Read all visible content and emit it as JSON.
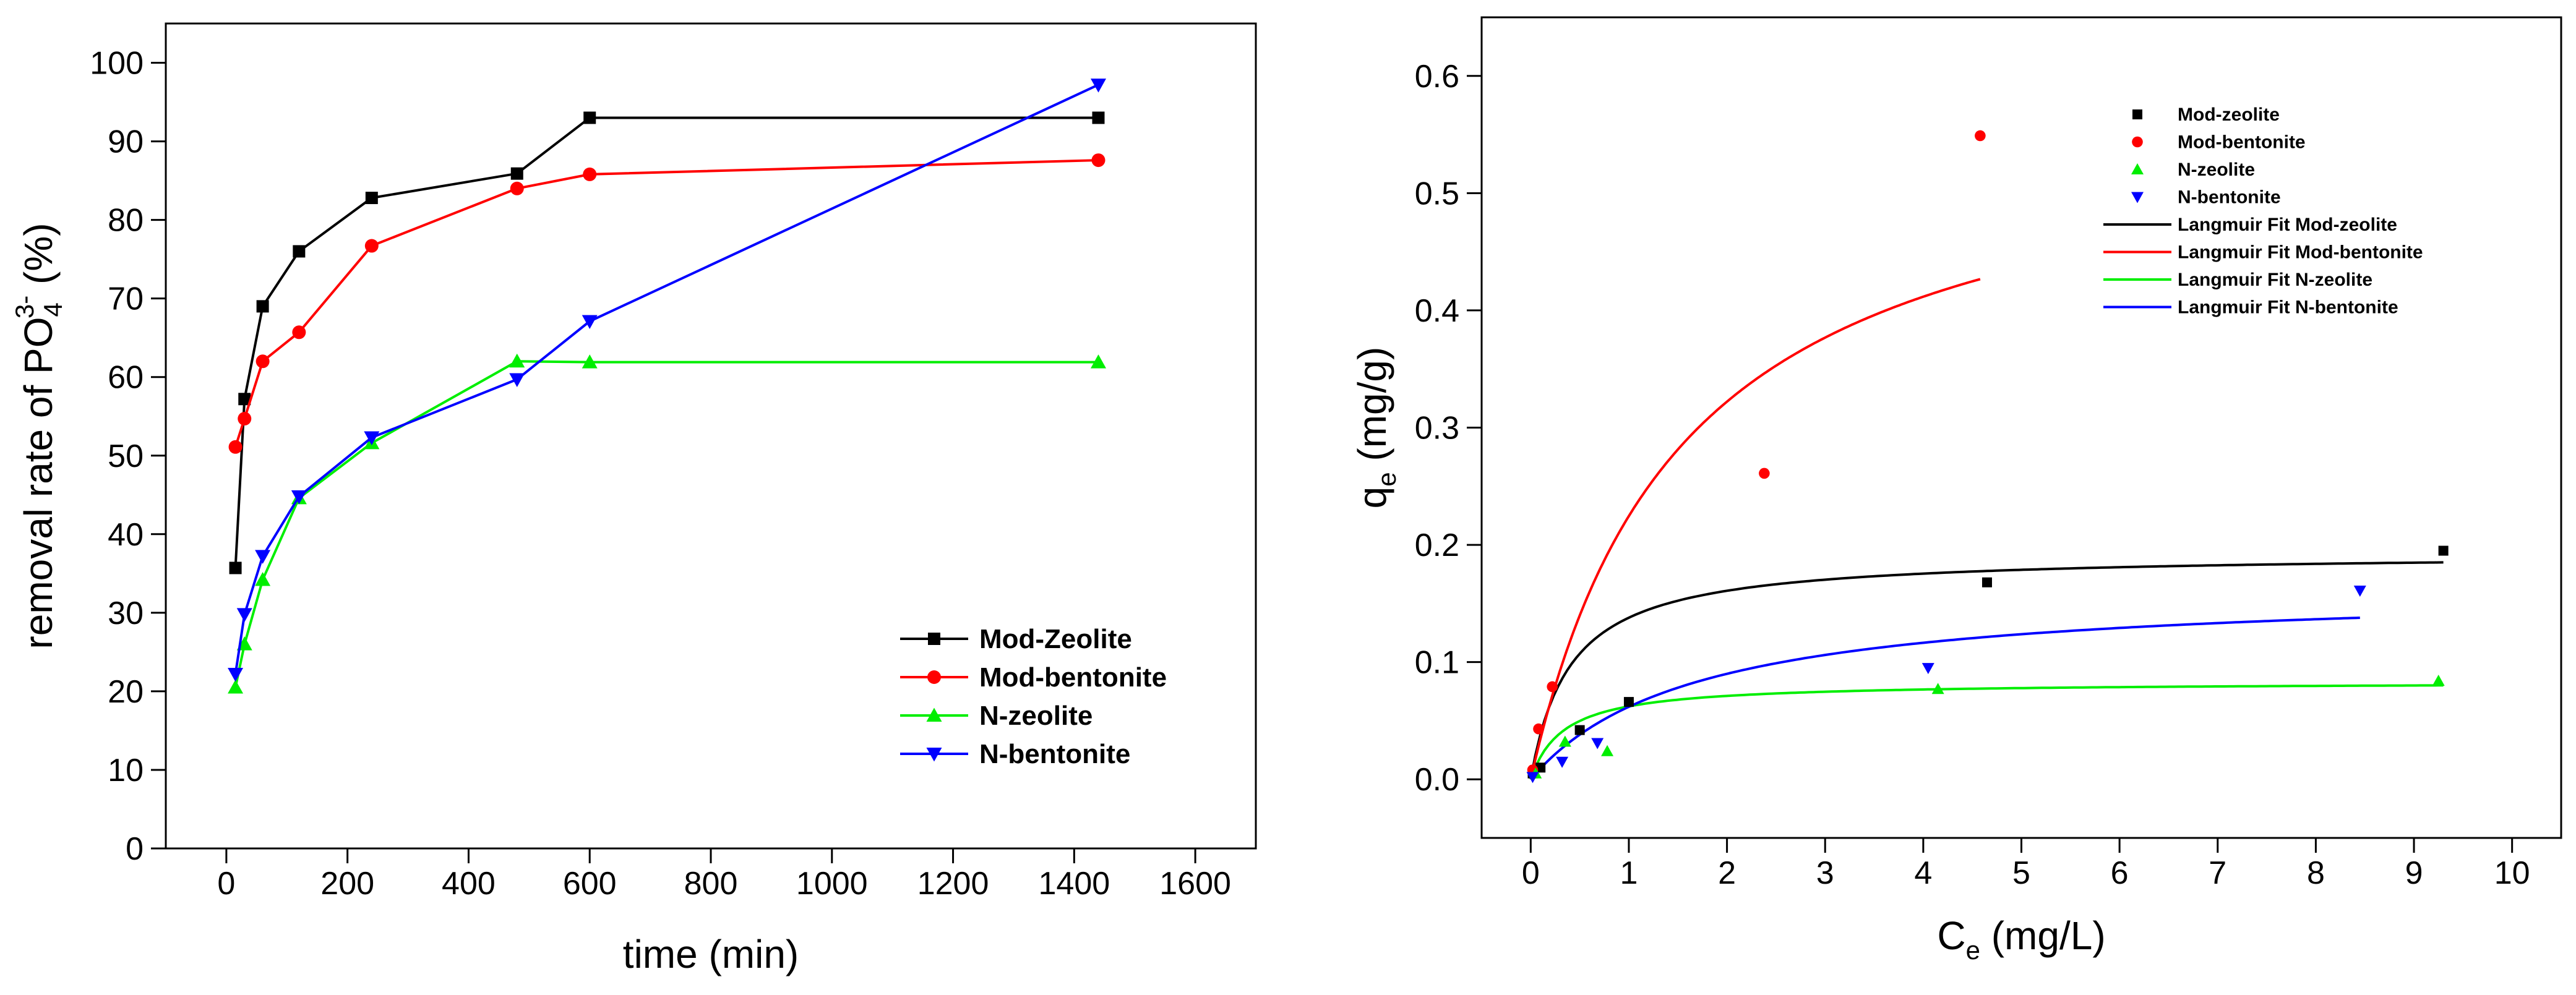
{
  "chart_data": [
    {
      "type": "line",
      "id": "kinetics",
      "title": "",
      "xlabel": "time (min)",
      "ylabel": {
        "main": "removal rate of  PO",
        "sub": "4",
        "sup": "3-",
        "suffix": " (%)"
      },
      "xlim": [
        -100,
        1700
      ],
      "ylim": [
        0,
        105
      ],
      "xticks": [
        0,
        200,
        400,
        600,
        800,
        1000,
        1200,
        1400,
        1600
      ],
      "yticks": [
        0,
        10,
        20,
        30,
        40,
        50,
        60,
        70,
        80,
        90,
        100
      ],
      "grid": false,
      "legend_position": "bottom-right",
      "series": [
        {
          "name": "Mod-Zeolite",
          "color": "#000000",
          "marker": "square",
          "x": [
            15,
            30,
            60,
            120,
            240,
            480,
            600,
            1440
          ],
          "y": [
            35.7,
            57.2,
            69.0,
            76.0,
            82.8,
            85.9,
            93.0,
            93.0
          ]
        },
        {
          "name": "Mod-bentonite",
          "color": "#ff0000",
          "marker": "circle",
          "x": [
            15,
            30,
            60,
            120,
            240,
            480,
            600,
            1440
          ],
          "y": [
            51.1,
            54.7,
            62.0,
            65.7,
            76.7,
            84.0,
            85.8,
            87.6
          ]
        },
        {
          "name": "N-zeolite",
          "color": "#00ee00",
          "marker": "triangle-up",
          "x": [
            15,
            30,
            60,
            120,
            240,
            480,
            600,
            1440
          ],
          "y": [
            20.5,
            26.0,
            34.2,
            44.6,
            51.6,
            62.0,
            61.9,
            61.9
          ]
        },
        {
          "name": "N-bentonite",
          "color": "#0000ff",
          "marker": "triangle-down",
          "x": [
            15,
            30,
            60,
            120,
            240,
            480,
            600,
            1440
          ],
          "y": [
            22.2,
            29.8,
            37.2,
            44.8,
            52.3,
            59.7,
            67.1,
            97.2
          ]
        }
      ]
    },
    {
      "type": "scatter",
      "id": "isotherm",
      "title": "",
      "xlabel": {
        "main": "C",
        "sub": "e",
        "suffix": " (mg/L)"
      },
      "ylabel": {
        "main": "q",
        "sub": "e",
        "suffix": " (mg/g)"
      },
      "xlim": [
        -0.5,
        10.5
      ],
      "ylim": [
        -0.05,
        0.65
      ],
      "xticks": [
        0,
        1,
        2,
        3,
        4,
        5,
        6,
        7,
        8,
        9,
        10
      ],
      "yticks": [
        0.0,
        0.1,
        0.2,
        0.3,
        0.4,
        0.5,
        0.6
      ],
      "grid": false,
      "legend_position": "top-center",
      "series": [
        {
          "name": "Mod-zeolite",
          "color": "#000000",
          "marker": "square",
          "x": [
            0.02,
            0.1,
            0.5,
            1.0,
            4.65,
            9.3
          ],
          "y": [
            0.005,
            0.01,
            0.042,
            0.066,
            0.168,
            0.195
          ]
        },
        {
          "name": "Mod-bentonite",
          "color": "#ff0000",
          "marker": "circle",
          "x": [
            0.02,
            0.08,
            0.22,
            2.38,
            4.58
          ],
          "y": [
            0.008,
            0.043,
            0.079,
            0.261,
            0.549
          ]
        },
        {
          "name": "N-zeolite",
          "color": "#00ee00",
          "marker": "triangle-up",
          "x": [
            0.05,
            0.35,
            0.78,
            4.15,
            9.25
          ],
          "y": [
            0.005,
            0.032,
            0.024,
            0.077,
            0.084
          ]
        },
        {
          "name": "N-bentonite",
          "color": "#0000ff",
          "marker": "triangle-down",
          "x": [
            0.02,
            0.32,
            0.68,
            4.05,
            8.45
          ],
          "y": [
            0.002,
            0.015,
            0.031,
            0.095,
            0.161
          ]
        }
      ],
      "fits": [
        {
          "name": "Langmuir Fit Mod-zeolite",
          "color": "#000000",
          "qmax": 0.193,
          "K": 2.5,
          "xmin": 0.0,
          "xmax": 9.3
        },
        {
          "name": "Langmuir Fit Mod-bentonite",
          "color": "#ff0000",
          "qmax": 0.57,
          "K": 0.65,
          "xmin": 0.0,
          "xmax": 4.58
        },
        {
          "name": "Langmuir Fit N-zeolite",
          "color": "#00ee00",
          "qmax": 0.083,
          "K": 3.0,
          "xmin": 0.0,
          "xmax": 9.3
        },
        {
          "name": "Langmuir Fit N-bentonite",
          "color": "#0000ff",
          "qmax": 0.165,
          "K": 0.6,
          "xmin": 0.0,
          "xmax": 8.45
        }
      ]
    }
  ]
}
